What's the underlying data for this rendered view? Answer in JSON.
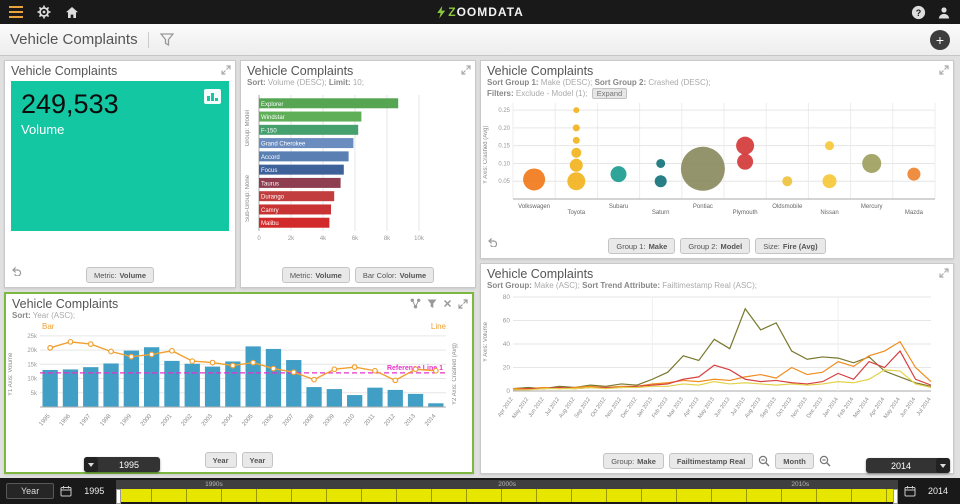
{
  "colors": {
    "kpi": "#12c7a2",
    "sel": "#7cb842",
    "timeline": "#e6e600",
    "brand": "#8dc63f"
  },
  "topbar": {
    "logo": "ZOOMDATA"
  },
  "titlebar": {
    "title": "Vehicle Complaints",
    "add_label": "+"
  },
  "panels": {
    "kpi": {
      "title": "Vehicle Complaints",
      "value": "249,533",
      "value_label": "Volume",
      "button": {
        "label": "Metric:",
        "value": "Volume"
      }
    },
    "top_models": {
      "title": "Vehicle Complaints",
      "sort_label": "Sort:",
      "sort_value": " Volume (DESC); ",
      "limit_label": "Limit:",
      "limit_value": " 10;",
      "group_axis": "Group: Model",
      "subgroup_axis": "Sub-Group: None",
      "buttons": [
        {
          "label": "Metric:",
          "value": "Volume"
        },
        {
          "label": "Bar Color:",
          "value": "Volume"
        }
      ]
    },
    "bubbles": {
      "title": "Vehicle Complaints",
      "sort1_label": "Sort Group 1:",
      "sort1_value": " Make (DESC); ",
      "sort2_label": "Sort Group 2:",
      "sort2_value": " Crashed (DESC);",
      "filters_label": "Filters:",
      "filters_value": " Exclude - Model (1);",
      "expand_button": "Expand",
      "ylabel": "Y Axis: Crashed (Avg)",
      "buttons": [
        {
          "label": "Group 1:",
          "value": "Make"
        },
        {
          "label": "Group 2:",
          "value": "Model"
        },
        {
          "label": "Size:",
          "value": "Fire (Avg)"
        }
      ]
    },
    "combo": {
      "title": "Vehicle Complaints",
      "sort_label": "Sort:",
      "sort_value": " Year (ASC);",
      "legend_bar": "Bar",
      "legend_line": "Line",
      "y1label": "Y1 Axis: Volume",
      "y2label": "Y2 Axis: Crashed (Avg)",
      "buttons": [
        {
          "label": "",
          "value": "Year"
        },
        {
          "label": "",
          "value": "Year"
        }
      ],
      "pill": "1995"
    },
    "trend": {
      "title": "Vehicle Complaints",
      "sortg_label": "Sort Group:",
      "sortg_value": " Make (ASC); ",
      "sortt_label": "Sort Trend Attribute:",
      "sortt_value": " Failtimestamp Real (ASC);",
      "ylabel": "Y Axis: Volume",
      "buttons": [
        {
          "label": "Group:",
          "value": "Make"
        },
        {
          "label": "",
          "value": "Failtimestamp Real"
        },
        {
          "label": "",
          "value": "Month"
        }
      ],
      "pill": "2014"
    }
  },
  "timebar": {
    "field": "Year",
    "start": "1995",
    "end": "2014",
    "decades": [
      "1990s",
      "2000s",
      "2010s"
    ]
  },
  "chart_data": [
    {
      "id": "top_models",
      "type": "bar",
      "orientation": "horizontal",
      "title": "Vehicle Complaints",
      "sort": "Volume (DESC)",
      "limit": 10,
      "categories": [
        "Explorer",
        "Windstar",
        "F-150",
        "Grand Cherokee",
        "Accord",
        "Focus",
        "Taurus",
        "Durango",
        "Camry",
        "Malibu"
      ],
      "values": [
        8700,
        6400,
        6200,
        5900,
        5600,
        5300,
        5100,
        4700,
        4500,
        4400
      ],
      "colors": [
        "#55a553",
        "#5fae58",
        "#45a06e",
        "#6a8cbe",
        "#5a7fb3",
        "#3f619a",
        "#8e3e50",
        "#c23d3d",
        "#c93232",
        "#d22a2a"
      ],
      "xlim": [
        0,
        10000
      ],
      "xticks": [
        "0",
        "2k",
        "4k",
        "6k",
        "8k",
        "10k"
      ],
      "metric": "Volume"
    },
    {
      "id": "make_bubbles",
      "type": "scatter",
      "title": "Vehicle Complaints",
      "ylabel": "Crashed (Avg)",
      "ylim": [
        0,
        0.27
      ],
      "yticks": [
        0.05,
        0.1,
        0.15,
        0.2,
        0.25
      ],
      "categories": [
        "Volkswagen",
        "Toyota",
        "Subaru",
        "Saturn",
        "Pontiac",
        "Plymouth",
        "Oldsmobile",
        "Nissan",
        "Mercury",
        "Mazda"
      ],
      "size_field": "Fire (Avg)",
      "points": [
        {
          "make": "Volkswagen",
          "y": 0.055,
          "r": 11,
          "color": "#f07a1a"
        },
        {
          "make": "Toyota",
          "y": 0.05,
          "r": 9,
          "color": "#f2b31f"
        },
        {
          "make": "Toyota",
          "y": 0.095,
          "r": 6.5,
          "color": "#f2b31f"
        },
        {
          "make": "Toyota",
          "y": 0.13,
          "r": 5,
          "color": "#f2b31f"
        },
        {
          "make": "Toyota",
          "y": 0.165,
          "r": 3.5,
          "color": "#f2b31f"
        },
        {
          "make": "Toyota",
          "y": 0.2,
          "r": 3.5,
          "color": "#f2b31f"
        },
        {
          "make": "Toyota",
          "y": 0.25,
          "r": 3,
          "color": "#f2b31f"
        },
        {
          "make": "Subaru",
          "y": 0.07,
          "r": 8,
          "color": "#1d9c90"
        },
        {
          "make": "Saturn",
          "y": 0.05,
          "r": 6,
          "color": "#16747c"
        },
        {
          "make": "Saturn",
          "y": 0.1,
          "r": 4.5,
          "color": "#16747c"
        },
        {
          "make": "Pontiac",
          "y": 0.085,
          "r": 22,
          "color": "#8a8a60"
        },
        {
          "make": "Plymouth",
          "y": 0.105,
          "r": 8,
          "color": "#d43a3a"
        },
        {
          "make": "Plymouth",
          "y": 0.15,
          "r": 9,
          "color": "#d43a3a"
        },
        {
          "make": "Oldsmobile",
          "y": 0.05,
          "r": 5,
          "color": "#eec23e"
        },
        {
          "make": "Nissan",
          "y": 0.05,
          "r": 7,
          "color": "#f5c83a"
        },
        {
          "make": "Nissan",
          "y": 0.15,
          "r": 4.5,
          "color": "#f5c83a"
        },
        {
          "make": "Mercury",
          "y": 0.1,
          "r": 9.5,
          "color": "#9da05e"
        },
        {
          "make": "Mazda",
          "y": 0.07,
          "r": 6.5,
          "color": "#ee8330"
        }
      ]
    },
    {
      "id": "year_combo",
      "type": "bar+line",
      "title": "Vehicle Complaints",
      "categories": [
        "1995",
        "1996",
        "1997",
        "1998",
        "1999",
        "2000",
        "2001",
        "2002",
        "2003",
        "2004",
        "2005",
        "2006",
        "2007",
        "2008",
        "2009",
        "2010",
        "2011",
        "2012",
        "2013",
        "2014"
      ],
      "bars": {
        "name": "Volume",
        "color": "#419fc6",
        "values": [
          13000,
          13200,
          14000,
          15300,
          19800,
          21000,
          16200,
          15200,
          14200,
          16000,
          21300,
          20400,
          16500,
          7000,
          6300,
          4200,
          6800,
          6000,
          4600,
          1300
        ]
      },
      "line": {
        "name": "Crashed (Avg)",
        "color": "#f0a030",
        "ylim": [
          0,
          1
        ],
        "values": [
          0.8,
          0.88,
          0.85,
          0.75,
          0.68,
          0.71,
          0.76,
          0.62,
          0.6,
          0.56,
          0.6,
          0.52,
          0.47,
          0.37,
          0.51,
          0.54,
          0.49,
          0.36,
          0.51,
          0.49
        ]
      },
      "y1lim": [
        0,
        26000
      ],
      "y1ticks": [
        "5k",
        "10k",
        "15k",
        "20k",
        "25k"
      ],
      "reference_line": {
        "value": 12000,
        "label": "Reference Line 1",
        "color": "#e632c8"
      }
    },
    {
      "id": "make_trend",
      "type": "line",
      "title": "Vehicle Complaints",
      "x": [
        "Apr 2012",
        "May 2012",
        "Jun 2012",
        "Jul 2012",
        "Aug 2012",
        "Sep 2012",
        "Oct 2012",
        "Nov 2012",
        "Dec 2012",
        "Jan 2013",
        "Feb 2013",
        "Mar 2013",
        "Apr 2013",
        "May 2013",
        "Jun 2013",
        "Jul 2013",
        "Aug 2013",
        "Sep 2013",
        "Oct 2013",
        "Nov 2013",
        "Dec 2013",
        "Jan 2014",
        "Feb 2014",
        "Mar 2014",
        "Apr 2014",
        "May 2014",
        "Jun 2014",
        "Jul 2014"
      ],
      "ylim": [
        0,
        80
      ],
      "yticks": [
        0,
        20,
        40,
        60,
        80
      ],
      "series": [
        {
          "color": "#77772e",
          "values": [
            2,
            3,
            2,
            4,
            3,
            5,
            4,
            6,
            5,
            10,
            16,
            30,
            26,
            44,
            36,
            70,
            52,
            58,
            34,
            27,
            29,
            28,
            24,
            29,
            17,
            12,
            7,
            4
          ]
        },
        {
          "color": "#f08c1e",
          "values": [
            2,
            2,
            3,
            2,
            3,
            4,
            3,
            4,
            4,
            6,
            7,
            9,
            8,
            10,
            9,
            12,
            14,
            11,
            20,
            14,
            16,
            25,
            21,
            30,
            34,
            42,
            20,
            8
          ]
        },
        {
          "color": "#d64040",
          "values": [
            1,
            2,
            2,
            3,
            2,
            3,
            3,
            3,
            4,
            5,
            6,
            10,
            12,
            22,
            18,
            10,
            8,
            9,
            7,
            6,
            8,
            15,
            10,
            25,
            20,
            34,
            10,
            5
          ]
        },
        {
          "color": "#e2d24b",
          "values": [
            1,
            1,
            2,
            2,
            2,
            3,
            2,
            3,
            3,
            4,
            4,
            6,
            5,
            8,
            6,
            7,
            6,
            5,
            6,
            5,
            6,
            8,
            7,
            10,
            18,
            17,
            6,
            3
          ]
        }
      ]
    }
  ]
}
